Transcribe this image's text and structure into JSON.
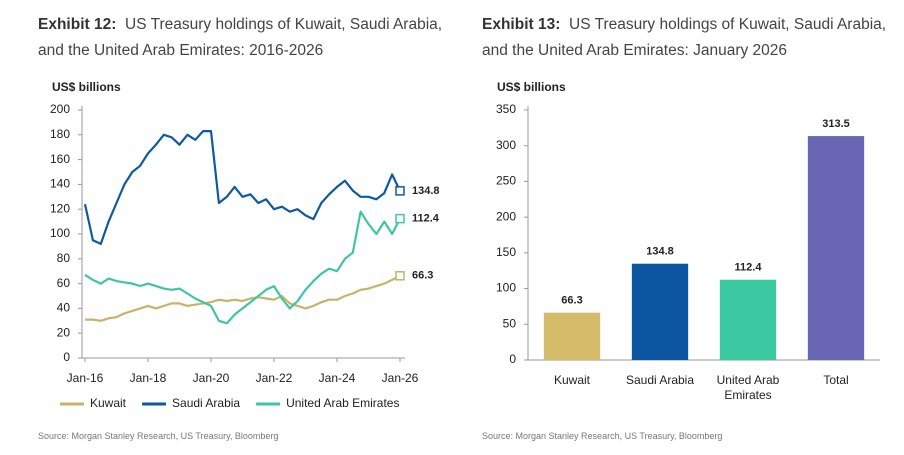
{
  "chart_data": [
    {
      "type": "line",
      "exhibit": "Exhibit 12:",
      "title": "US Treasury holdings of Kuwait, Saudi Arabia, and the United Arab Emirates: 2016-2026",
      "ylabel": "US$ billions",
      "source": "Source: Morgan Stanley Research, US Treasury, Bloomberg",
      "x": [
        2016,
        2016.25,
        2016.5,
        2016.75,
        2017,
        2017.25,
        2017.5,
        2017.75,
        2018,
        2018.25,
        2018.5,
        2018.75,
        2019,
        2019.25,
        2019.5,
        2019.75,
        2020,
        2020.25,
        2020.5,
        2020.75,
        2021,
        2021.25,
        2021.5,
        2021.75,
        2022,
        2022.25,
        2022.5,
        2022.75,
        2023,
        2023.25,
        2023.5,
        2023.75,
        2024,
        2024.25,
        2024.5,
        2024.75,
        2025,
        2025.25,
        2025.5,
        2025.75,
        2026
      ],
      "xlim": [
        2016,
        2026
      ],
      "xticks": [
        {
          "value": 2016,
          "label": "Jan-16"
        },
        {
          "value": 2018,
          "label": "Jan-18"
        },
        {
          "value": 2020,
          "label": "Jan-20"
        },
        {
          "value": 2022,
          "label": "Jan-22"
        },
        {
          "value": 2024,
          "label": "Jan-24"
        },
        {
          "value": 2026,
          "label": "Jan-26"
        }
      ],
      "ylim": [
        0,
        200
      ],
      "yticks": [
        0,
        20,
        40,
        60,
        80,
        100,
        120,
        140,
        160,
        180,
        200
      ],
      "legend": "bottom",
      "series": [
        {
          "name": "Kuwait",
          "color": "#c9b26b",
          "values": [
            31,
            31,
            30,
            32,
            33,
            36,
            38,
            40,
            42,
            40,
            42,
            44,
            44,
            42,
            43,
            44,
            45,
            47,
            46,
            47,
            46,
            48,
            49,
            48,
            47,
            50,
            44,
            42,
            40,
            42,
            45,
            47,
            47,
            50,
            52,
            55,
            56,
            58,
            60,
            63,
            66.3
          ]
        },
        {
          "name": "Saudi Arabia",
          "color": "#0e5aa0",
          "values": [
            124,
            95,
            92,
            110,
            125,
            140,
            150,
            155,
            165,
            172,
            180,
            178,
            172,
            180,
            176,
            183,
            183,
            125,
            130,
            138,
            130,
            132,
            125,
            128,
            120,
            122,
            118,
            120,
            115,
            112,
            125,
            132,
            138,
            143,
            135,
            130,
            130,
            128,
            133,
            148,
            134.8
          ]
        },
        {
          "name": "United Arab Emirates",
          "color": "#3ec6a3",
          "values": [
            67,
            63,
            60,
            64,
            62,
            61,
            60,
            58,
            60,
            58,
            56,
            55,
            56,
            52,
            48,
            45,
            42,
            30,
            28,
            35,
            40,
            45,
            50,
            55,
            58,
            48,
            40,
            46,
            55,
            62,
            68,
            72,
            70,
            80,
            85,
            118,
            108,
            100,
            110,
            100,
            112.4
          ]
        }
      ]
    },
    {
      "type": "bar",
      "exhibit": "Exhibit 13:",
      "title": "US Treasury holdings of Kuwait, Saudi Arabia, and the United Arab Emirates: January 2026",
      "ylabel": "US$ billions",
      "source": "Source: Morgan Stanley Research, US Treasury, Bloomberg",
      "categories": [
        "Kuwait",
        "Saudi Arabia",
        "United Arab Emirates",
        "Total"
      ],
      "values": [
        66.3,
        134.8,
        112.4,
        313.5
      ],
      "colors": [
        "#d4bc6a",
        "#0b54a0",
        "#3cc9a2",
        "#6a66b6"
      ],
      "ylim": [
        0,
        350
      ],
      "yticks": [
        0,
        50,
        100,
        150,
        200,
        250,
        300,
        350
      ]
    }
  ]
}
